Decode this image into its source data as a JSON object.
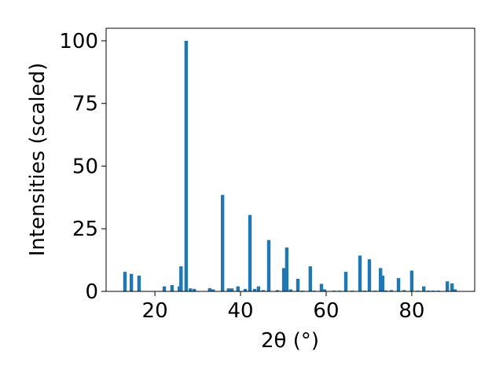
{
  "chart_data": {
    "type": "bar",
    "xlabel": "2θ (°)",
    "ylabel": "Intensities (scaled)",
    "color": "#1f77b4",
    "x": [
      13.0,
      14.5,
      16.3,
      22.2,
      24.0,
      25.7,
      26.1,
      27.3,
      28.3,
      29.2,
      32.8,
      33.6,
      35.8,
      37.2,
      38.0,
      39.4,
      41.1,
      42.2,
      43.3,
      44.2,
      45.3,
      46.6,
      48.6,
      50.1,
      50.8,
      51.7,
      53.4,
      54.5,
      56.3,
      57.2,
      58.9,
      59.6,
      61.8,
      63.1,
      64.6,
      66.1,
      67.9,
      69.0,
      70.1,
      71.4,
      72.7,
      73.2,
      73.9,
      75.2,
      76.9,
      78.2,
      80.0,
      81.5,
      82.8,
      83.9,
      85.0,
      86.2,
      88.3,
      89.4,
      90.1
    ],
    "values": [
      7.8,
      7.0,
      6.3,
      2.0,
      2.5,
      2.0,
      10.0,
      100,
      1.2,
      1.0,
      1.3,
      0.8,
      38.5,
      1.2,
      1.2,
      2.0,
      1.0,
      30.5,
      1.0,
      2.0,
      0.5,
      20.5,
      0.5,
      9.3,
      17.5,
      0.8,
      5.0,
      0.3,
      10.0,
      0.3,
      3.0,
      0.8,
      0.3,
      0.3,
      7.8,
      0.3,
      14.3,
      0.3,
      12.8,
      0.3,
      9.3,
      6.3,
      0.4,
      0.5,
      5.3,
      0.5,
      8.3,
      0.3,
      2.0,
      0.3,
      0.3,
      0.3,
      4.0,
      3.2,
      0.8
    ],
    "xlim": [
      8.6,
      94.7
    ],
    "ylim": [
      0,
      105
    ],
    "xticks": [
      20,
      40,
      60,
      80
    ],
    "yticks": [
      0,
      25,
      50,
      75,
      100
    ],
    "grid": false
  }
}
